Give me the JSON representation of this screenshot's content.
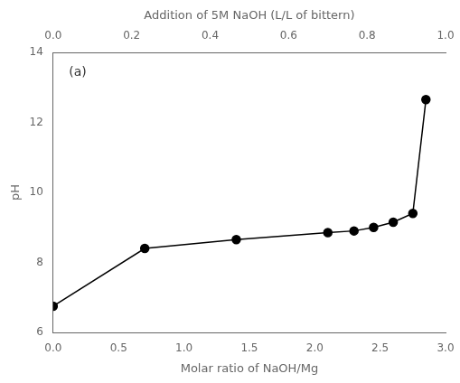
{
  "chart_data": {
    "type": "line",
    "x": [
      0.0,
      0.7,
      1.4,
      2.1,
      2.3,
      2.45,
      2.6,
      2.75,
      2.85
    ],
    "series": [
      {
        "name": "pH",
        "color": "black",
        "marker": "o",
        "line_style": "solid",
        "values": [
          6.75,
          8.4,
          8.65,
          8.85,
          8.9,
          9.0,
          9.15,
          9.4,
          12.65
        ]
      }
    ],
    "xlabel": "Molar ratio of NaOH/Mg",
    "ylabel": "pH",
    "x2label": "Addition of 5M NaOH (L/L of bittern)",
    "annotation": "(a)",
    "xlim": [
      0.0,
      3.0
    ],
    "xticks": [
      {
        "value": 0.0,
        "label": "0.0"
      },
      0.5,
      {
        "value": 1.0,
        "label": "1.0"
      },
      1.5,
      {
        "value": 2.0,
        "label": "2.0"
      },
      2.5,
      {
        "value": 3.0,
        "label": "3.0"
      }
    ],
    "x2lim": [
      0.0,
      1.0
    ],
    "x2ticks": [
      {
        "value": 0.0,
        "label": "0.0"
      },
      0.2,
      0.4,
      0.6,
      0.8,
      {
        "value": 1.0,
        "label": "1.0"
      }
    ],
    "ylim": [
      6.0,
      14.0
    ],
    "yticks": [
      6,
      8,
      10,
      12,
      14
    ],
    "grid": false,
    "legend": "none"
  }
}
